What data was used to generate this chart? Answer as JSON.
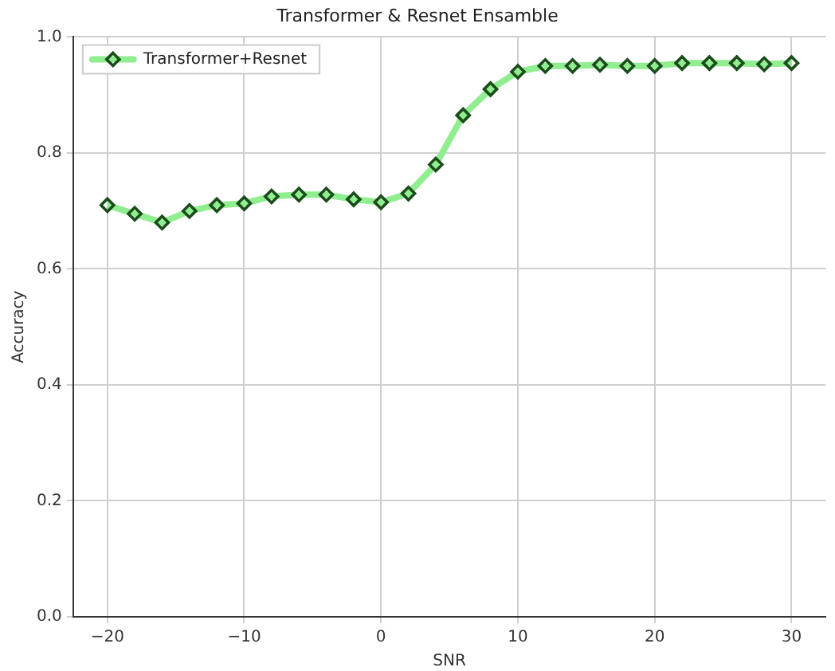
{
  "chart_data": {
    "type": "line",
    "title": "Transformer & Resnet Ensamble",
    "xlabel": "SNR",
    "ylabel": "Accuracy",
    "x": [
      -20,
      -18,
      -16,
      -14,
      -12,
      -10,
      -8,
      -6,
      -4,
      -2,
      0,
      2,
      4,
      6,
      8,
      10,
      12,
      14,
      16,
      18,
      20,
      22,
      24,
      26,
      28,
      30
    ],
    "series": [
      {
        "name": "Transformer+Resnet",
        "color": "#90ee90",
        "values": [
          0.71,
          0.695,
          0.68,
          0.7,
          0.71,
          0.713,
          0.725,
          0.728,
          0.728,
          0.72,
          0.715,
          0.73,
          0.78,
          0.865,
          0.91,
          0.94,
          0.95,
          0.95,
          0.952,
          0.95,
          0.95,
          0.955,
          0.955,
          0.955,
          0.953,
          0.955
        ]
      }
    ],
    "xlim": [
      -22.5,
      32.5
    ],
    "xticks": [
      {
        "value": -20,
        "label": "−20"
      },
      {
        "value": -10,
        "label": "−10"
      },
      0,
      10,
      20,
      30
    ],
    "ylim": [
      0,
      1
    ],
    "yticks": [
      {
        "value": 0,
        "label": "0.0"
      },
      0.2,
      0.4,
      0.6,
      0.8,
      {
        "value": 1,
        "label": "1.0"
      }
    ],
    "grid": true,
    "legend": "top left",
    "marker": "diamond",
    "line_style": "solid"
  }
}
